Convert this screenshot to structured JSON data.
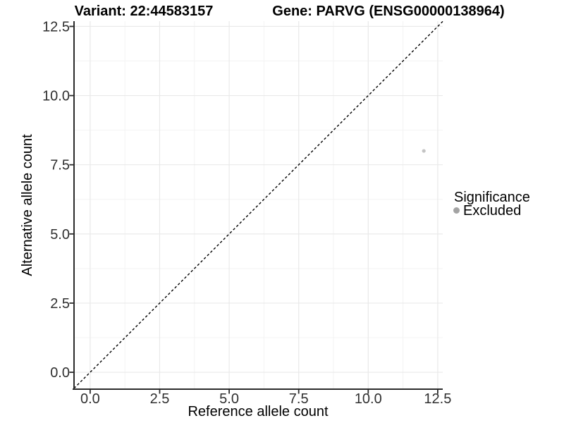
{
  "colors": {
    "background": "#ffffff",
    "grid_major": "#e9e9e9",
    "grid_minor": "#f3f3f3",
    "axis_line": "#2b2b2b",
    "tick_text": "#303030",
    "title_text": "#000000"
  },
  "chart_data": {
    "type": "scatter",
    "title_left": "Variant: 22:44583157",
    "title_right": "Gene: PARVG (ENSG00000138964)",
    "xlabel": "Reference allele count",
    "ylabel": "Alternative allele count",
    "xlim": [
      -0.58,
      12.68
    ],
    "ylim": [
      -0.61,
      12.69
    ],
    "xticks": [
      0,
      2.5,
      5,
      7.5,
      10,
      12.5
    ],
    "yticks": [
      0,
      2.5,
      5,
      7.5,
      10,
      12.5
    ],
    "xtick_labels": [
      "0.0",
      "2.5",
      "5.0",
      "7.5",
      "10.0",
      "12.5"
    ],
    "ytick_labels": [
      "0.0",
      "2.5",
      "5.0",
      "7.5",
      "10.0",
      "12.5"
    ],
    "minor_xticks": [
      1.25,
      3.75,
      6.25,
      8.75,
      11.25
    ],
    "minor_yticks": [
      1.25,
      3.75,
      6.25,
      8.75,
      11.25
    ],
    "grid": "major+minor",
    "reference_line": {
      "type": "identity",
      "style": "dashed",
      "color": "#000000"
    },
    "series": [
      {
        "name": "Excluded",
        "color": "#c4c4c4",
        "points": [
          {
            "x": 12,
            "y": 8
          }
        ]
      }
    ],
    "legend": {
      "title": "Significance",
      "position": "right",
      "items": [
        {
          "label": "Excluded",
          "color": "#a3a3a3"
        }
      ]
    }
  }
}
